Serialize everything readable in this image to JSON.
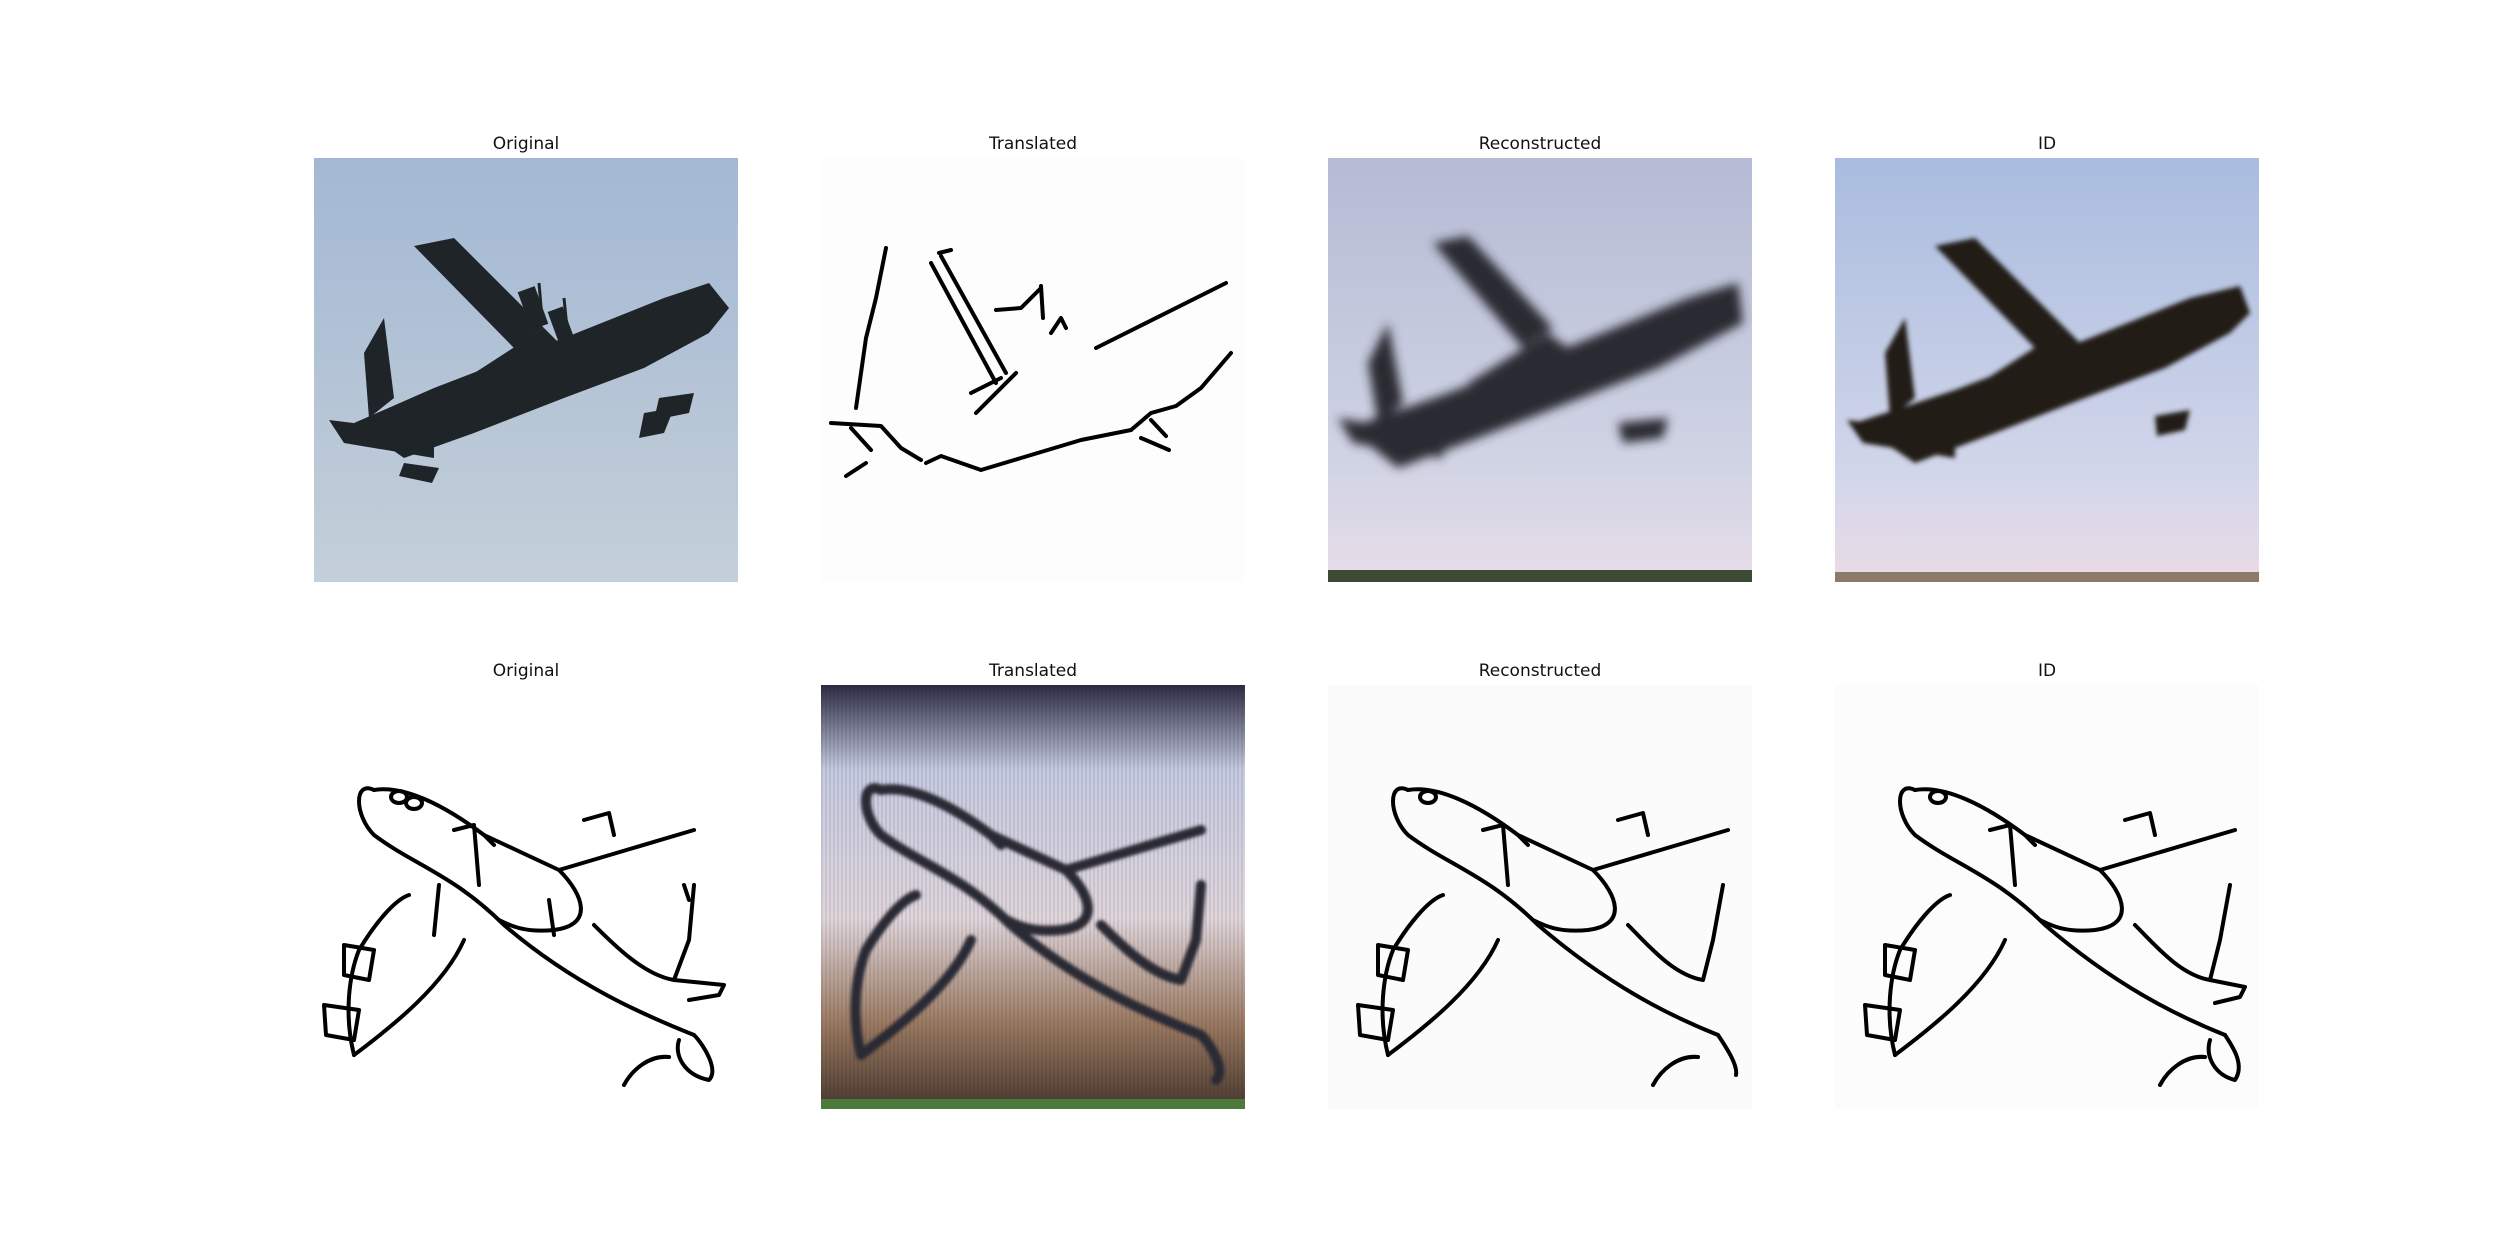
{
  "rows": [
    {
      "panels": [
        {
          "title": "Original",
          "content": "photo-cargo-plane"
        },
        {
          "title": "Translated",
          "content": "sketch-from-photo"
        },
        {
          "title": "Reconstructed",
          "content": "photo-cargo-plane-blurred"
        },
        {
          "title": "ID",
          "content": "photo-cargo-plane-identity"
        }
      ]
    },
    {
      "panels": [
        {
          "title": "Original",
          "content": "sketch-airliner"
        },
        {
          "title": "Translated",
          "content": "photo-from-sketch"
        },
        {
          "title": "Reconstructed",
          "content": "sketch-airliner-reconstructed"
        },
        {
          "title": "ID",
          "content": "sketch-airliner-identity"
        }
      ]
    }
  ],
  "colors": {
    "sky": "#a9bcd6",
    "plane": "#1f2428",
    "ink": "#000000",
    "haze": "#e7dde8"
  }
}
